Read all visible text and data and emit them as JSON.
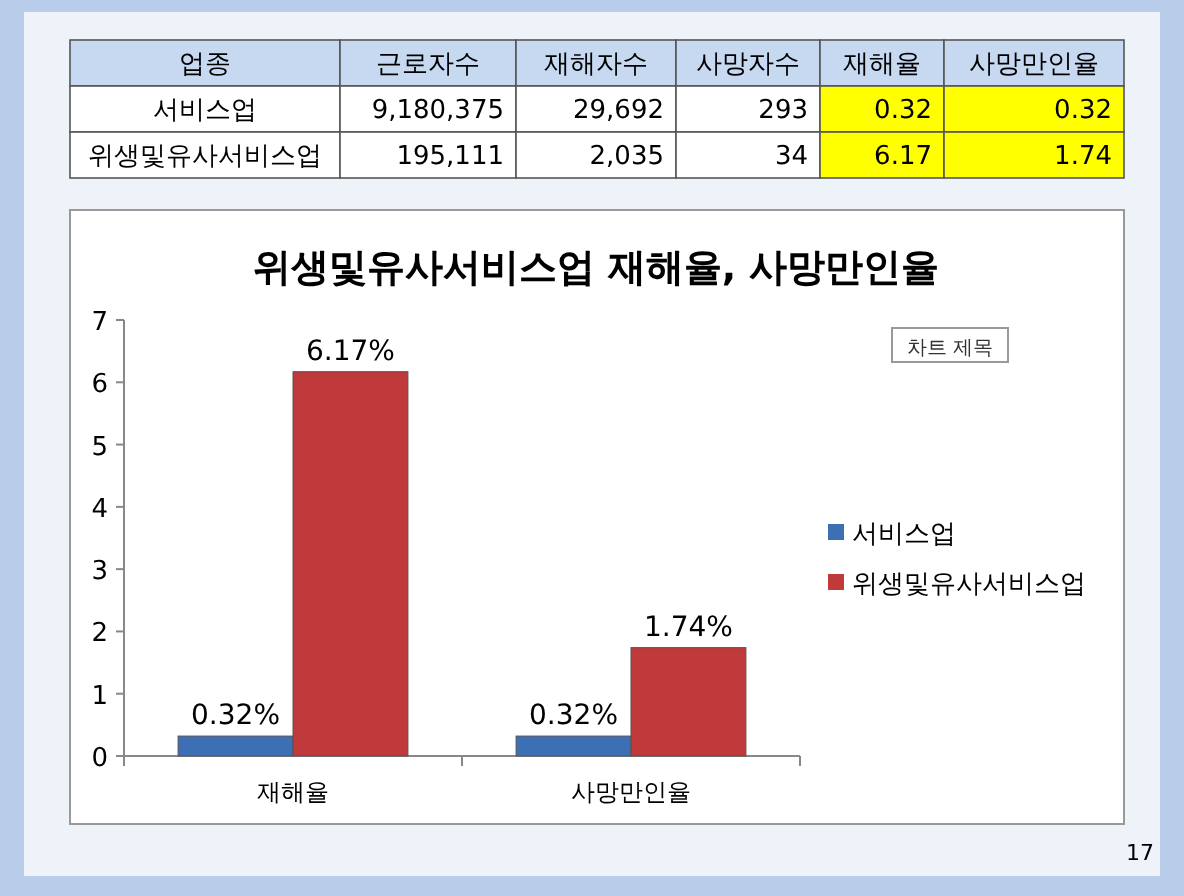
{
  "chart_data": {
    "type": "bar",
    "title": "위생및유사서비스업 재해율, 사망만인율",
    "categories": [
      "재해율",
      "사망만인율"
    ],
    "series": [
      {
        "name": "서비스업",
        "color": "#3c6fb4",
        "values": [
          0.32,
          0.32
        ],
        "value_labels": [
          "0.32%",
          "0.32%"
        ]
      },
      {
        "name": "위생및유사서비스업",
        "color": "#c0393b",
        "values": [
          6.17,
          1.74
        ],
        "value_labels": [
          "6.17%",
          "1.74%"
        ]
      }
    ],
    "ylim": [
      0,
      7
    ],
    "yticks": [
      0,
      1,
      2,
      3,
      4,
      5,
      6,
      7
    ],
    "legend": "right",
    "annotations": [
      "업종",
      "근로자수",
      "재해자수",
      "사망자수",
      "재해율",
      "사망만인율",
      "서비스업",
      "9,180,375",
      "29,692",
      "293",
      "0.32",
      "0.32",
      "위생및유사서비스업",
      "195,111",
      "2,035",
      "34",
      "6.17",
      "1.74",
      "차트 제목",
      "17"
    ]
  }
}
